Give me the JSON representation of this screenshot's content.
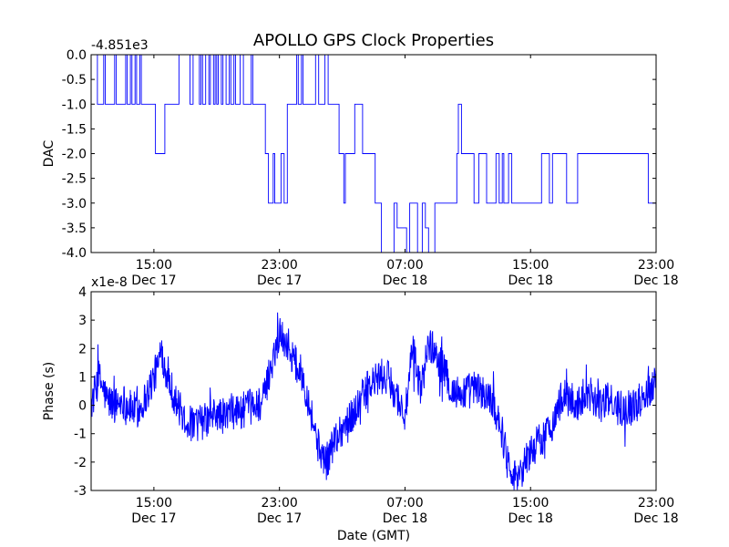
{
  "chart_data": [
    {
      "type": "line",
      "title": "APOLLO GPS Clock Properties",
      "offset_label": "-4.851e3",
      "xlabel": "",
      "ylabel": "DAC",
      "x_unit": "hours since 11:00 GMT Dec 17",
      "xlim": [
        0,
        36
      ],
      "ylim": [
        -4.0,
        0.0
      ],
      "yticks": [
        {
          "value": 0.0,
          "label": "0.0"
        },
        {
          "value": -0.5,
          "label": "-0.5"
        },
        {
          "value": -1.0,
          "label": "-1.0"
        },
        {
          "value": -1.5,
          "label": "-1.5"
        },
        {
          "value": -2.0,
          "label": "-2.0"
        },
        {
          "value": -2.5,
          "label": "-2.5"
        },
        {
          "value": -3.0,
          "label": "-3.0"
        },
        {
          "value": -3.5,
          "label": "-3.5"
        },
        {
          "value": -4.0,
          "label": "-4.0"
        }
      ],
      "xticks": [
        {
          "value": 4,
          "time": "15:00",
          "date": "Dec 17"
        },
        {
          "value": 12,
          "time": "23:00",
          "date": "Dec 17"
        },
        {
          "value": 20,
          "time": "07:00",
          "date": "Dec 18"
        },
        {
          "value": 28,
          "time": "15:00",
          "date": "Dec 18"
        },
        {
          "value": 36,
          "time": "23:00",
          "date": "Dec 18"
        }
      ],
      "grid": false,
      "color": "#0000ff",
      "series": [
        {
          "x": [
            0,
            0.4,
            0.8,
            0.9,
            1.5,
            1.6,
            2.2,
            2.3,
            2.5,
            2.6,
            2.8,
            2.9,
            3.1,
            3.2,
            4.1,
            4.7,
            5.6,
            6.3,
            6.5,
            6.9,
            7.0,
            7.1,
            7.3,
            7.5,
            7.6,
            7.8,
            7.9,
            8.0,
            8.1,
            8.3,
            8.4,
            8.6,
            8.8,
            8.9,
            9.1,
            9.2,
            9.5,
            9.7,
            10.2,
            10.3,
            11.1,
            11.3,
            11.6,
            11.7,
            12.1,
            12.3,
            12.5,
            12.7,
            13.1,
            13.2,
            13.4,
            13.5,
            14.0,
            14.1,
            14.3,
            14.5,
            14.9,
            15.1,
            15.6,
            15.8,
            16.1,
            16.2,
            16.8,
            17.3,
            18.1,
            18.5,
            19.3,
            19.5,
            20.1,
            20.3,
            20.8,
            21.1,
            21.3,
            21.5,
            21.9,
            22.0,
            23.3,
            23.4,
            23.6,
            23.8,
            24.4,
            24.7,
            25.2,
            25.8,
            26.0,
            26.2,
            26.3,
            26.6,
            26.8,
            28.7,
            29.2,
            29.4,
            30.0,
            30.3,
            31.0,
            31.2,
            31.5,
            31.8,
            32.3,
            32.7,
            33.2,
            35.3,
            35.5,
            36.0
          ],
          "y": [
            0.0,
            -1.0,
            0.0,
            -1.0,
            0.0,
            -1.0,
            0.0,
            -1.0,
            0.0,
            -1.0,
            0.0,
            -1.0,
            0.0,
            -1.0,
            -2.0,
            -1.0,
            0.0,
            -1.0,
            0.0,
            -1.0,
            0.0,
            -1.0,
            0.0,
            -1.0,
            0.0,
            -1.0,
            0.0,
            -1.0,
            0.0,
            -1.0,
            0.0,
            -1.0,
            0.0,
            -1.0,
            0.0,
            -1.0,
            0.0,
            -1.0,
            0.0,
            -1.0,
            -2.0,
            -3.0,
            -2.0,
            -3.0,
            -2.0,
            -3.0,
            -1.0,
            -1.0,
            0.0,
            -1.0,
            0.0,
            -1.0,
            -1.0,
            -1.0,
            0.0,
            -1.0,
            0.0,
            -1.0,
            -1.0,
            -2.0,
            -3.0,
            -2.0,
            -1.0,
            -2.0,
            -3.0,
            -4.0,
            -3.0,
            -3.5,
            -4.0,
            -3.0,
            -4.0,
            -3.0,
            -3.5,
            -4.0,
            -3.0,
            -3.0,
            -2.0,
            -1.0,
            -2.0,
            -2.0,
            -3.0,
            -2.0,
            -3.0,
            -2.0,
            -3.0,
            -2.0,
            -3.0,
            -2.0,
            -3.0,
            -2.0,
            -3.0,
            -2.0,
            -2.0,
            -3.0,
            -2.0,
            -2.0,
            -2.0,
            -2.0,
            -2.0,
            -2.0,
            -2.0,
            -2.0,
            -3.0,
            -3.0
          ]
        }
      ]
    },
    {
      "type": "line",
      "title": "",
      "offset_label": "x1e-8",
      "xlabel": "Date (GMT)",
      "ylabel": "Phase (s)",
      "x_unit": "hours since 11:00 GMT Dec 17",
      "xlim": [
        0,
        36
      ],
      "ylim": [
        -3,
        4
      ],
      "yticks": [
        {
          "value": 4,
          "label": "4"
        },
        {
          "value": 3,
          "label": "3"
        },
        {
          "value": 2,
          "label": "2"
        },
        {
          "value": 1,
          "label": "1"
        },
        {
          "value": 0,
          "label": "0"
        },
        {
          "value": -1,
          "label": "-1"
        },
        {
          "value": -2,
          "label": "-2"
        },
        {
          "value": -3,
          "label": "-3"
        }
      ],
      "xticks": [
        {
          "value": 4,
          "time": "15:00",
          "date": "Dec 17"
        },
        {
          "value": 12,
          "time": "23:00",
          "date": "Dec 17"
        },
        {
          "value": 20,
          "time": "07:00",
          "date": "Dec 18"
        },
        {
          "value": 28,
          "time": "15:00",
          "date": "Dec 18"
        },
        {
          "value": 36,
          "time": "23:00",
          "date": "Dec 18"
        }
      ],
      "grid": false,
      "color": "#0000ff",
      "series": [
        {
          "x": [
            0,
            0.5,
            1.0,
            1.5,
            2.0,
            2.5,
            3.0,
            3.5,
            4.0,
            4.5,
            5.0,
            5.5,
            6.0,
            6.5,
            7.0,
            7.5,
            8.0,
            8.5,
            9.0,
            9.5,
            10.0,
            10.5,
            11.0,
            11.5,
            12.0,
            12.5,
            13.0,
            13.5,
            14.0,
            14.5,
            15.0,
            15.5,
            16.0,
            16.5,
            17.0,
            17.5,
            18.0,
            18.5,
            19.0,
            19.5,
            20.0,
            20.5,
            21.0,
            21.5,
            22.0,
            22.5,
            23.0,
            23.5,
            24.0,
            24.5,
            25.0,
            25.5,
            26.0,
            26.5,
            27.0,
            27.5,
            28.0,
            28.5,
            29.0,
            29.5,
            30.0,
            30.5,
            31.0,
            31.5,
            32.0,
            32.5,
            33.0,
            33.5,
            34.0,
            34.5,
            35.0,
            35.5,
            36.0
          ],
          "y": [
            0.0,
            1.0,
            0.2,
            0.0,
            0.2,
            -0.1,
            -0.2,
            0.3,
            1.0,
            1.8,
            0.8,
            0.0,
            -0.5,
            -0.7,
            -0.6,
            -0.5,
            -0.3,
            -0.4,
            -0.2,
            -0.2,
            -0.1,
            0.0,
            0.2,
            1.5,
            2.5,
            2.2,
            1.5,
            1.0,
            -0.2,
            -1.5,
            -2.0,
            -1.2,
            -0.8,
            -0.5,
            0.0,
            0.5,
            0.8,
            1.0,
            0.9,
            0.3,
            -0.4,
            2.0,
            0.5,
            2.2,
            1.8,
            1.2,
            0.5,
            0.4,
            0.5,
            0.6,
            0.4,
            0.2,
            -0.5,
            -1.8,
            -2.5,
            -2.2,
            -1.6,
            -1.3,
            -1.0,
            -0.5,
            0.3,
            0.2,
            0.0,
            0.5,
            0.3,
            0.0,
            0.2,
            -0.1,
            0.0,
            -0.1,
            0.2,
            0.5,
            1.0
          ]
        }
      ]
    }
  ]
}
